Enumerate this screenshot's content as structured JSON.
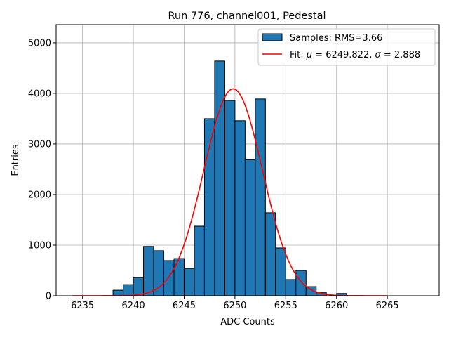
{
  "chart_data": {
    "type": "bar",
    "title": "Run 776, channel001, Pedestal",
    "xlabel": "ADC Counts",
    "ylabel": "Entries",
    "xlim": [
      6232.4,
      6270.1
    ],
    "ylim": [
      0,
      5360
    ],
    "xticks": [
      6235,
      6240,
      6245,
      6250,
      6255,
      6260,
      6265
    ],
    "yticks": [
      0,
      1000,
      2000,
      3000,
      4000,
      5000
    ],
    "grid": true,
    "legend_position": "top-right",
    "histogram": {
      "name": "Samples: RMS=3.66",
      "color": "#1f77b4",
      "bin_width": 1,
      "bin_edges_start": 6238,
      "values": [
        110,
        220,
        360,
        975,
        890,
        695,
        735,
        540,
        1375,
        3500,
        4640,
        3860,
        3460,
        2690,
        3890,
        1640,
        945,
        320,
        500,
        180,
        60,
        0,
        45
      ]
    },
    "fit": {
      "name_prefix": "Fit: ",
      "mu_symbol": "μ",
      "mu_text": " = 6249.822, ",
      "sigma_symbol": "σ",
      "sigma_text": " = 2.888",
      "color": "#ff0000",
      "mu": 6249.822,
      "sigma": 2.888,
      "amplitude": 4090,
      "x_range": [
        6234,
        6265
      ]
    }
  }
}
